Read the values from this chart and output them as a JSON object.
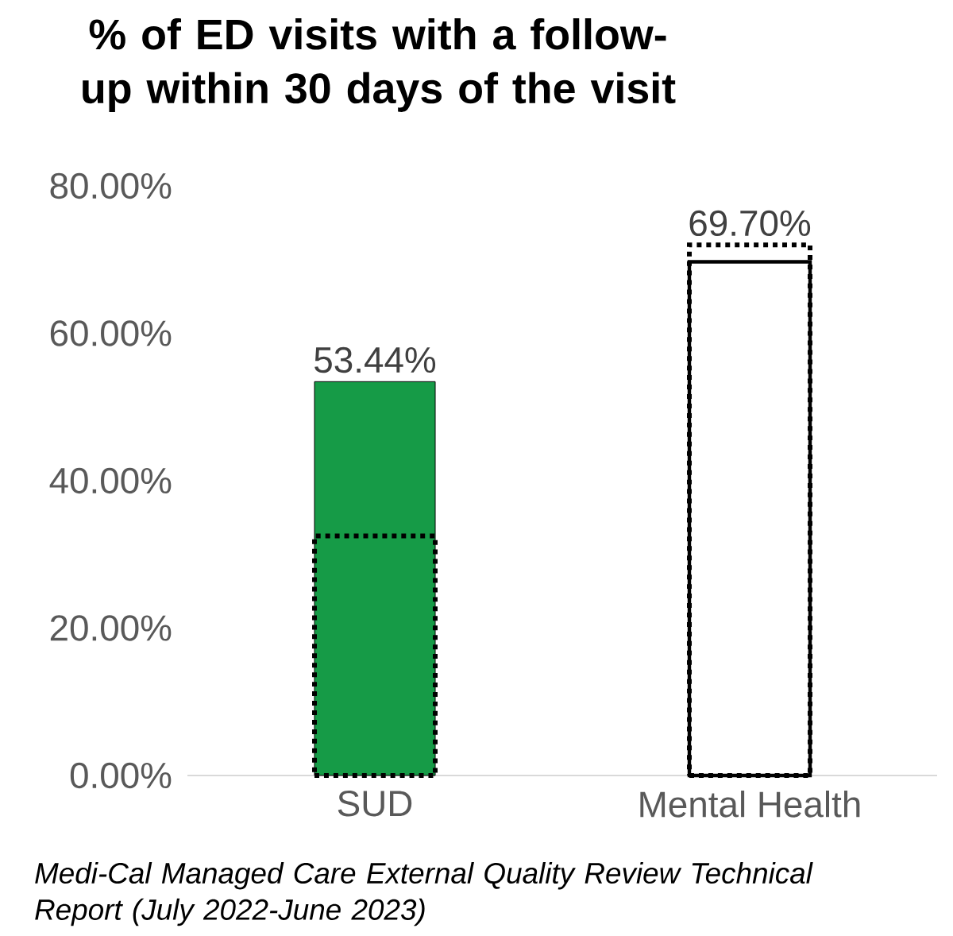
{
  "chart_data": {
    "type": "bar",
    "title": "% of ED visits with a follow-up within 30 days of the visit",
    "categories": [
      "SUD",
      "Mental Health"
    ],
    "series": [
      {
        "values": [
          53.44,
          69.7
        ],
        "colors": [
          "#169b47",
          "#ffffff"
        ],
        "value_labels": [
          "53.44%",
          "69.70%"
        ]
      },
      {
        "values": [
          32.5,
          72
        ],
        "color": "#000000",
        "line_style": "dotted"
      }
    ],
    "ylim": [
      0,
      80
    ],
    "yticks": [
      {
        "value": 0,
        "label": "0.00%"
      },
      {
        "value": 20,
        "label": "20.00%"
      },
      {
        "value": 40,
        "label": "40.00%"
      },
      {
        "value": 60,
        "label": "60.00%"
      },
      {
        "value": 80,
        "label": "80.00%"
      }
    ],
    "grid": false,
    "annotations": [
      "Medi-Cal Managed Care External Quality Review Technical Report (July 2022-June 2023)"
    ]
  }
}
